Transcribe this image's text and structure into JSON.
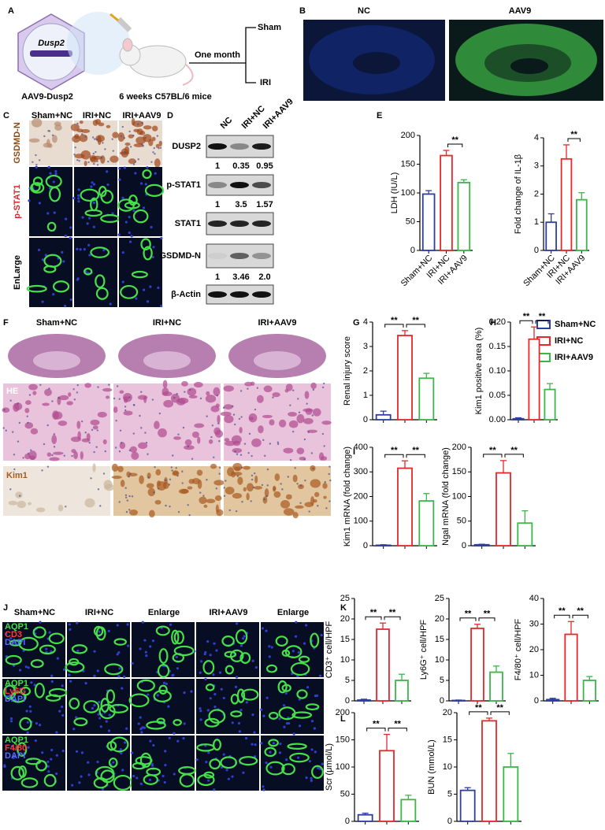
{
  "figure": {
    "A": {
      "letter": "A",
      "vector": "Dusp2",
      "vector_label": "AAV9-Dusp2",
      "mice": "6 weeks C57BL/6 mice",
      "time": "One month",
      "groups": [
        "Sham",
        "IRI"
      ]
    },
    "B": {
      "letter": "B",
      "columns": [
        "NC",
        "AAV9"
      ]
    },
    "C": {
      "letter": "C",
      "columns": [
        "Sham+NC",
        "IRI+NC",
        "IRI+AAV9"
      ],
      "rows": [
        "GSDMD-N",
        "p-STAT1",
        "EnLarge"
      ]
    },
    "D": {
      "letter": "D",
      "columns": [
        "NC",
        "IRI+NC",
        "IRI+AAV9"
      ],
      "rows": [
        "DUSP2",
        "p-STAT1",
        "STAT1",
        "GSDMD-N",
        "β-Actin"
      ],
      "quantification": [
        [
          "1",
          "0.35",
          "0.95"
        ],
        [
          "1",
          "3.5",
          "1.57"
        ],
        [
          "1",
          "3.46",
          "2.0"
        ]
      ]
    },
    "E": {
      "letter": "E"
    },
    "F": {
      "letter": "F",
      "columns": [
        "Sham+NC",
        "IRI+NC",
        "IRI+AAV9"
      ],
      "rows": [
        "HE",
        "Kim1"
      ]
    },
    "G": {
      "letter": "G"
    },
    "H": {
      "letter": "H"
    },
    "legend": {
      "labels": [
        "Sham+NC",
        "IRI+NC",
        "IRI+AAV9"
      ],
      "colors": [
        "#2e3e9e",
        "#e8262b",
        "#3cb54a"
      ]
    },
    "I": {
      "letter": "I"
    },
    "J": {
      "letter": "J",
      "columns": [
        "Sham+NC",
        "IRI+NC",
        "Enlarge",
        "IRI+AAV9",
        "Enlarge"
      ],
      "stains": [
        [
          "AQP1",
          "CD3",
          "DAPI"
        ],
        [
          "AQP1",
          "Ly6G",
          "DAPI"
        ],
        [
          "AQP1",
          "F4/80",
          "DAPI"
        ]
      ]
    },
    "K": {
      "letter": "K"
    },
    "L": {
      "letter": "L"
    }
  },
  "chart_data": [
    {
      "type": "bar",
      "ylabel": "LDH (IU/L)",
      "categories": [
        "Sham+NC",
        "IRI+NC",
        "IRI+AAV9"
      ],
      "values": [
        98,
        165,
        118
      ],
      "errors": [
        6,
        9,
        5
      ],
      "colors": [
        "#2e3e9e",
        "#e8262b",
        "#3cb54a"
      ],
      "ylim": [
        0,
        200
      ],
      "yticks": [
        0,
        50,
        100,
        150,
        200
      ],
      "significance": [
        {
          "from": 1,
          "to": 2,
          "label": "**"
        }
      ]
    },
    {
      "type": "bar",
      "ylabel": "Fold change of IL-1β",
      "categories": [
        "Sham+NC",
        "IRI+NC",
        "IRI+AAV9"
      ],
      "values": [
        1.0,
        3.25,
        1.8
      ],
      "errors": [
        0.3,
        0.5,
        0.25
      ],
      "colors": [
        "#2e3e9e",
        "#e8262b",
        "#3cb54a"
      ],
      "ylim": [
        0,
        4
      ],
      "yticks": [
        0,
        1,
        2,
        3,
        4
      ],
      "significance": [
        {
          "from": 1,
          "to": 2,
          "label": "**"
        }
      ]
    },
    {
      "type": "bar",
      "ylabel": "Renal injury score",
      "categories": [
        null,
        null,
        null
      ],
      "values": [
        0.2,
        3.45,
        1.7
      ],
      "errors": [
        0.15,
        0.2,
        0.2
      ],
      "colors": [
        "#2e3e9e",
        "#e8262b",
        "#3cb54a"
      ],
      "ylim": [
        0,
        4
      ],
      "yticks": [
        0,
        1,
        2,
        3,
        4
      ],
      "significance": [
        {
          "from": 0,
          "to": 1,
          "label": "**"
        },
        {
          "from": 1,
          "to": 2,
          "label": "**"
        }
      ]
    },
    {
      "type": "bar",
      "ylabel": "Kim1 positive area (%)",
      "categories": [
        null,
        null,
        null
      ],
      "values": [
        0.002,
        0.165,
        0.062
      ],
      "errors": [
        0.002,
        0.025,
        0.012
      ],
      "colors": [
        "#2e3e9e",
        "#e8262b",
        "#3cb54a"
      ],
      "ylim": [
        0,
        0.2
      ],
      "yticks": [
        {
          "value": 0,
          "label": "0.00"
        },
        {
          "value": 0.05,
          "label": "0.05"
        },
        {
          "value": 0.1,
          "label": "0.10"
        },
        {
          "value": 0.15,
          "label": "0.15"
        },
        {
          "value": 0.2,
          "label": "0.20"
        }
      ],
      "significance": [
        {
          "from": 0,
          "to": 1,
          "label": "**"
        },
        {
          "from": 1,
          "to": 2,
          "label": "**"
        }
      ]
    },
    {
      "type": "bar",
      "ylabel": "Kim1 mRNA (fold change)",
      "categories": [
        null,
        null,
        null
      ],
      "values": [
        2,
        315,
        182
      ],
      "errors": [
        2,
        30,
        30
      ],
      "colors": [
        "#2e3e9e",
        "#e8262b",
        "#3cb54a"
      ],
      "ylim": [
        0,
        400
      ],
      "yticks": [
        0,
        100,
        200,
        300,
        400
      ],
      "significance": [
        {
          "from": 0,
          "to": 1,
          "label": "**"
        },
        {
          "from": 1,
          "to": 2,
          "label": "**"
        }
      ]
    },
    {
      "type": "bar",
      "ylabel": "Ngal mRNA (fold change)",
      "categories": [
        null,
        null,
        null
      ],
      "values": [
        2,
        148,
        46
      ],
      "errors": [
        1,
        25,
        25
      ],
      "colors": [
        "#2e3e9e",
        "#e8262b",
        "#3cb54a"
      ],
      "ylim": [
        0,
        200
      ],
      "yticks": [
        0,
        50,
        100,
        150,
        200
      ],
      "significance": [
        {
          "from": 0,
          "to": 1,
          "label": "**"
        },
        {
          "from": 1,
          "to": 2,
          "label": "**"
        }
      ]
    },
    {
      "type": "bar",
      "ylabel": "CD3⁺ cell/HPF",
      "categories": [
        null,
        null,
        null
      ],
      "values": [
        0.2,
        17.5,
        5
      ],
      "errors": [
        0.2,
        1.5,
        1.5
      ],
      "colors": [
        "#2e3e9e",
        "#e8262b",
        "#3cb54a"
      ],
      "ylim": [
        0,
        25
      ],
      "yticks": [
        0,
        5,
        10,
        15,
        20,
        25
      ],
      "significance": [
        {
          "from": 0,
          "to": 1,
          "label": "**"
        },
        {
          "from": 1,
          "to": 2,
          "label": "**"
        }
      ]
    },
    {
      "type": "bar",
      "ylabel": "Ly6G⁺ cell/HPF",
      "categories": [
        null,
        null,
        null
      ],
      "values": [
        0.1,
        17.7,
        7
      ],
      "errors": [
        0.1,
        1,
        1.5
      ],
      "colors": [
        "#2e3e9e",
        "#e8262b",
        "#3cb54a"
      ],
      "ylim": [
        0,
        25
      ],
      "yticks": [
        0,
        5,
        10,
        15,
        20,
        25
      ],
      "significance": [
        {
          "from": 0,
          "to": 1,
          "label": "**"
        },
        {
          "from": 1,
          "to": 2,
          "label": "**"
        }
      ]
    },
    {
      "type": "bar",
      "ylabel": "F4/80⁺ cell/HPF",
      "categories": [
        null,
        null,
        null
      ],
      "values": [
        0.5,
        26,
        8
      ],
      "errors": [
        0.5,
        5,
        1.5
      ],
      "colors": [
        "#2e3e9e",
        "#e8262b",
        "#3cb54a"
      ],
      "ylim": [
        0,
        40
      ],
      "yticks": [
        0,
        10,
        20,
        30,
        40
      ],
      "significance": [
        {
          "from": 0,
          "to": 1,
          "label": "**"
        },
        {
          "from": 1,
          "to": 2,
          "label": "**"
        }
      ]
    },
    {
      "type": "bar",
      "ylabel": "Scr (μmol/L)",
      "categories": [
        null,
        null,
        null
      ],
      "values": [
        12,
        130,
        40
      ],
      "errors": [
        3,
        30,
        8
      ],
      "colors": [
        "#2e3e9e",
        "#e8262b",
        "#3cb54a"
      ],
      "ylim": [
        0,
        200
      ],
      "yticks": [
        0,
        50,
        100,
        150,
        200
      ],
      "significance": [
        {
          "from": 0,
          "to": 1,
          "label": "**"
        },
        {
          "from": 1,
          "to": 2,
          "label": "**"
        }
      ]
    },
    {
      "type": "bar",
      "ylabel": "BUN (mmol/L)",
      "categories": [
        null,
        null,
        null
      ],
      "values": [
        5.7,
        18.5,
        10
      ],
      "errors": [
        0.5,
        0.5,
        2.5
      ],
      "colors": [
        "#2e3e9e",
        "#e8262b",
        "#3cb54a"
      ],
      "ylim": [
        0,
        20
      ],
      "yticks": [
        0,
        5,
        10,
        15,
        20
      ],
      "significance": [
        {
          "from": 0,
          "to": 1,
          "label": "**"
        },
        {
          "from": 1,
          "to": 2,
          "label": "**"
        }
      ]
    }
  ]
}
